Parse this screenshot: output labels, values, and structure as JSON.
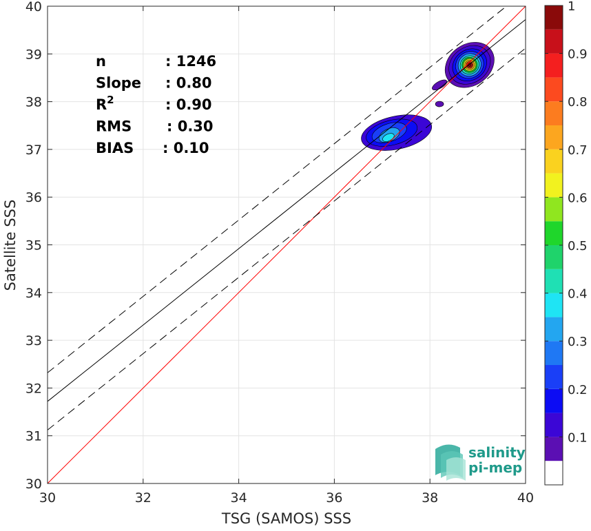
{
  "chart_data": {
    "type": "scatter",
    "subtype": "density-contour",
    "xlabel": "TSG (SAMOS) SSS",
    "ylabel": "Satellite SSS",
    "xlim": [
      30,
      40
    ],
    "ylim": [
      30,
      40
    ],
    "xticks": [
      30,
      32,
      34,
      36,
      38,
      40
    ],
    "yticks": [
      30,
      31,
      32,
      33,
      34,
      35,
      36,
      37,
      38,
      39,
      40
    ],
    "grid": true,
    "stats": [
      {
        "key": "n",
        "value": ": 1246"
      },
      {
        "key": "Slope",
        "value": ": 0.80"
      },
      {
        "key": "R",
        "sup": "2",
        "value": ": 0.90"
      },
      {
        "key": "RMS",
        "value": ": 0.30"
      },
      {
        "key": "BIAS",
        "value": ": 0.10"
      }
    ],
    "lines": [
      {
        "role": "one-to-one",
        "color": "#ff0000",
        "style": "solid",
        "slope": 1.0,
        "intercept": 0.0
      },
      {
        "role": "regression",
        "color": "#000000",
        "style": "solid",
        "slope": 0.8,
        "intercept": 7.72
      },
      {
        "role": "regression-plus-rms",
        "color": "#000000",
        "style": "dashed",
        "slope": 0.8,
        "intercept": 8.32
      },
      {
        "role": "regression-minus-rms",
        "color": "#000000",
        "style": "dashed",
        "slope": 0.8,
        "intercept": 7.12
      }
    ],
    "density_clusters": [
      {
        "center_x": 37.15,
        "center_y": 37.35,
        "peak": 0.35
      },
      {
        "center_x": 38.85,
        "center_y": 38.75,
        "peak": 1.0
      },
      {
        "center_x": 38.2,
        "center_y": 38.35,
        "peak": 0.05
      },
      {
        "center_x": 38.2,
        "center_y": 37.95,
        "peak": 0.05
      }
    ],
    "colorbar": {
      "ticks": [
        0.1,
        0.2,
        0.3,
        0.4,
        0.5,
        0.6,
        0.7,
        0.8,
        0.9,
        1
      ],
      "tick_labels": [
        "0.1",
        "0.2",
        "0.3",
        "0.4",
        "0.5",
        "0.6",
        "0.7",
        "0.8",
        "0.9",
        "1"
      ],
      "range": [
        0,
        1
      ],
      "levels": [
        {
          "from": 0.0,
          "to": 0.05,
          "color": "#ffffff"
        },
        {
          "from": 0.05,
          "to": 0.1,
          "color": "#5b0fb3"
        },
        {
          "from": 0.1,
          "to": 0.15,
          "color": "#3b06d6"
        },
        {
          "from": 0.15,
          "to": 0.2,
          "color": "#0c0cf4"
        },
        {
          "from": 0.2,
          "to": 0.25,
          "color": "#1a3ff7"
        },
        {
          "from": 0.25,
          "to": 0.3,
          "color": "#1f78f4"
        },
        {
          "from": 0.3,
          "to": 0.35,
          "color": "#23a6f0"
        },
        {
          "from": 0.35,
          "to": 0.4,
          "color": "#1fe4f4"
        },
        {
          "from": 0.4,
          "to": 0.45,
          "color": "#1fe0b4"
        },
        {
          "from": 0.45,
          "to": 0.5,
          "color": "#1fd36b"
        },
        {
          "from": 0.5,
          "to": 0.55,
          "color": "#1fd62b"
        },
        {
          "from": 0.55,
          "to": 0.6,
          "color": "#90e61f"
        },
        {
          "from": 0.6,
          "to": 0.65,
          "color": "#f2f21f"
        },
        {
          "from": 0.65,
          "to": 0.7,
          "color": "#fad21f"
        },
        {
          "from": 0.7,
          "to": 0.75,
          "color": "#fca61f"
        },
        {
          "from": 0.75,
          "to": 0.8,
          "color": "#fc7c1f"
        },
        {
          "from": 0.8,
          "to": 0.85,
          "color": "#fc4a1f"
        },
        {
          "from": 0.85,
          "to": 0.9,
          "color": "#f41f1f"
        },
        {
          "from": 0.9,
          "to": 0.95,
          "color": "#c8101a"
        },
        {
          "from": 0.95,
          "to": 1.0,
          "color": "#8a0a0a"
        }
      ]
    }
  },
  "logo": {
    "line1": "salinity",
    "line2": "pi-mep"
  }
}
